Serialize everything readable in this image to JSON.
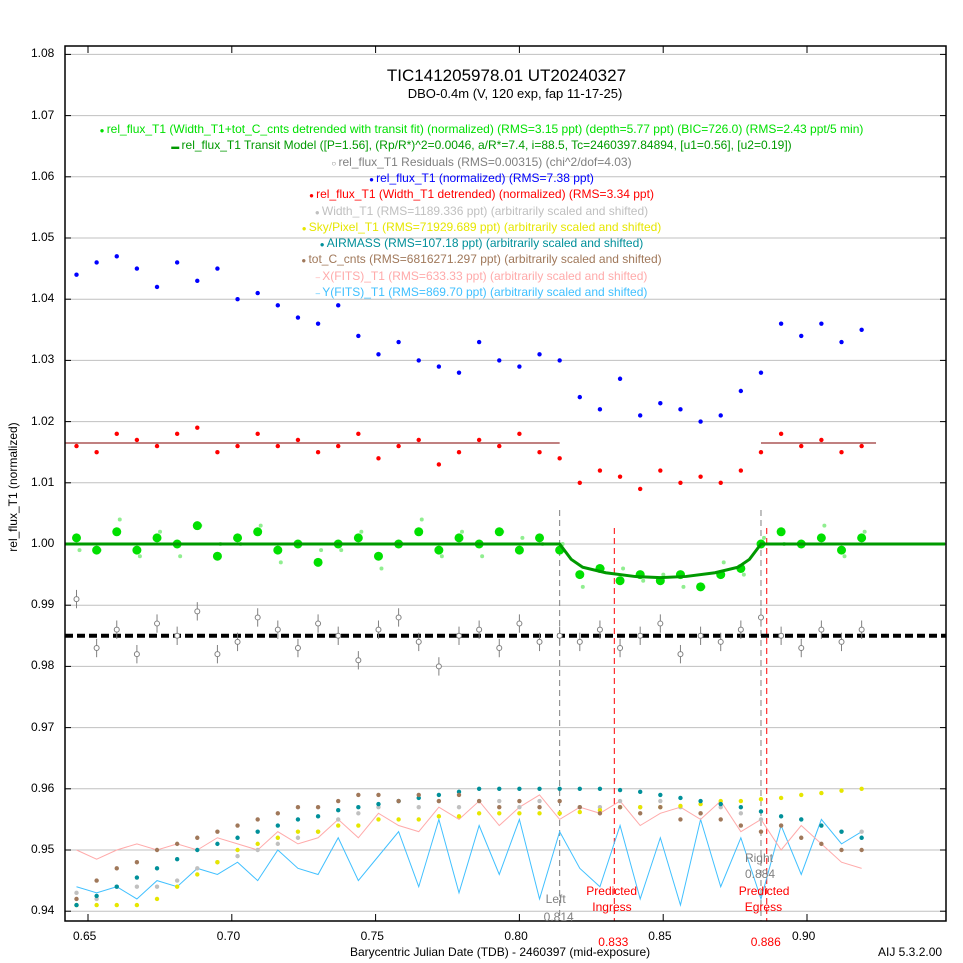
{
  "chart_data": {
    "type": "scatter",
    "title": "TIC141205978.01 UT20240327",
    "subtitle": "DBO-0.4m (V, 120 exp, fap 11-17-25)",
    "xlabel": "Barycentric Julian Date (TDB) - 2460397 (mid-exposure)",
    "ylabel": "rel_flux_T1 (normalized)",
    "version_label": "AIJ 5.3.2.00",
    "xlim": [
      0.642,
      0.948
    ],
    "ylim": [
      0.9385,
      1.0835
    ],
    "xticks": [
      "0.65",
      "0.70",
      "0.75",
      "0.80",
      "0.85",
      "0.90"
    ],
    "xtick_values": [
      0.65,
      0.7,
      0.75,
      0.8,
      0.85,
      0.9
    ],
    "yticks": [
      "0.94",
      "0.95",
      "0.96",
      "0.97",
      "0.98",
      "0.99",
      "1.00",
      "1.01",
      "1.02",
      "1.03",
      "1.04",
      "1.05",
      "1.06",
      "1.07",
      "1.08"
    ],
    "ytick_values": [
      0.94,
      0.95,
      0.96,
      0.97,
      0.98,
      0.99,
      1.0,
      1.01,
      1.02,
      1.03,
      1.04,
      1.05,
      1.06,
      1.07,
      1.08
    ],
    "grid": true,
    "x": [
      0.646,
      0.653,
      0.66,
      0.667,
      0.674,
      0.681,
      0.688,
      0.695,
      0.702,
      0.709,
      0.716,
      0.723,
      0.73,
      0.737,
      0.744,
      0.751,
      0.758,
      0.765,
      0.772,
      0.779,
      0.786,
      0.793,
      0.8,
      0.807,
      0.814,
      0.821,
      0.828,
      0.835,
      0.842,
      0.849,
      0.856,
      0.863,
      0.87,
      0.877,
      0.884,
      0.891,
      0.898,
      0.905,
      0.912,
      0.919
    ],
    "series": [
      {
        "name": "rel_flux_T1 (Width_T1+tot_C_cnts detrended with transit fit) (normalized) (RMS=3.15 ppt) (depth=5.77 ppt) (BIC=726.0) (RMS=2.43 ppt/5 min)",
        "color": "#00e000",
        "style": "bigdot",
        "values": [
          1.001,
          0.999,
          1.002,
          0.999,
          1.001,
          1.0,
          1.003,
          0.998,
          1.001,
          1.002,
          0.999,
          1.0,
          0.997,
          1.0,
          1.001,
          0.998,
          1.0,
          1.002,
          0.999,
          1.001,
          1.0,
          1.002,
          0.999,
          1.001,
          0.999,
          0.995,
          0.996,
          0.994,
          0.995,
          0.994,
          0.995,
          0.993,
          0.995,
          0.996,
          1.0,
          1.002,
          1.0,
          1.001,
          0.999,
          1.001
        ]
      },
      {
        "name": "rel_flux_T1 Transit Model ([P=1.56], (Rp/R*)^2=0.0046, a/R*=7.4, i=88.5, Tc=2460397.84894, [u1=0.56], [u2=0.19])",
        "color": "#009900",
        "style": "model",
        "model_x": [
          0.642,
          0.814,
          0.818,
          0.822,
          0.83,
          0.84,
          0.849,
          0.858,
          0.868,
          0.876,
          0.88,
          0.884,
          0.948
        ],
        "model_y": [
          1.0,
          1.0,
          0.9975,
          0.9962,
          0.9953,
          0.9947,
          0.9945,
          0.9947,
          0.9953,
          0.9962,
          0.9975,
          1.0,
          1.0
        ]
      },
      {
        "name": "rel_flux_T1 Residuals (RMS=0.00315) (chi^2/dof=4.03)",
        "color": "#808080",
        "style": "residual",
        "offset": 0.985,
        "error": 0.0015,
        "values": [
          0.991,
          0.983,
          0.986,
          0.982,
          0.987,
          0.985,
          0.989,
          0.982,
          0.984,
          0.988,
          0.986,
          0.983,
          0.987,
          0.985,
          0.981,
          0.986,
          0.988,
          0.984,
          0.98,
          0.985,
          0.986,
          0.983,
          0.987,
          0.984,
          0.985,
          0.984,
          0.986,
          0.983,
          0.985,
          0.987,
          0.982,
          0.985,
          0.984,
          0.986,
          0.988,
          0.985,
          0.983,
          0.986,
          0.984,
          0.986
        ]
      },
      {
        "name": "rel_flux_T1 (normalized) (RMS=7.38 ppt)",
        "color": "#0000ff",
        "style": "dot",
        "values": [
          1.044,
          1.046,
          1.047,
          1.045,
          1.042,
          1.046,
          1.043,
          1.045,
          1.04,
          1.041,
          1.039,
          1.037,
          1.036,
          1.039,
          1.034,
          1.031,
          1.033,
          1.03,
          1.029,
          1.028,
          1.033,
          1.03,
          1.029,
          1.031,
          1.03,
          1.024,
          1.022,
          1.027,
          1.021,
          1.023,
          1.022,
          1.02,
          1.021,
          1.025,
          1.028,
          1.036,
          1.034,
          1.036,
          1.033,
          1.035
        ]
      },
      {
        "name": "rel_flux_T1 (Width_T1 detrended) (normalized) (RMS=3.34 ppt)",
        "color": "#ff0000",
        "style": "dot",
        "baseline": 1.0165,
        "values": [
          1.016,
          1.015,
          1.018,
          1.017,
          1.016,
          1.018,
          1.019,
          1.015,
          1.016,
          1.018,
          1.016,
          1.017,
          1.015,
          1.016,
          1.018,
          1.014,
          1.016,
          1.017,
          1.013,
          1.015,
          1.017,
          1.016,
          1.018,
          1.015,
          1.014,
          1.01,
          1.012,
          1.011,
          1.009,
          1.012,
          1.01,
          1.011,
          1.01,
          1.012,
          1.015,
          1.018,
          1.016,
          1.017,
          1.015,
          1.016
        ]
      },
      {
        "name": "Width_T1 (RMS=1189.336 ppt) (arbitrarily scaled and shifted)",
        "color": "#c0c0c0",
        "style": "dot",
        "values": [
          0.943,
          0.942,
          0.944,
          0.944,
          0.944,
          0.945,
          0.947,
          0.948,
          0.949,
          0.95,
          0.951,
          0.952,
          0.953,
          0.955,
          0.956,
          0.957,
          0.958,
          0.957,
          0.958,
          0.957,
          0.958,
          0.958,
          0.957,
          0.958,
          0.956,
          0.957,
          0.957,
          0.958,
          0.957,
          0.958,
          0.957,
          0.956,
          0.957,
          0.956,
          0.955,
          0.954,
          0.955,
          0.954,
          0.953,
          0.953
        ]
      },
      {
        "name": "Sky/Pixel_T1 (RMS=71929.689 ppt) (arbitrarily scaled and shifted)",
        "color": "#e6e600",
        "style": "dot",
        "values": [
          0.941,
          0.941,
          0.941,
          0.941,
          0.942,
          0.944,
          0.946,
          0.948,
          0.95,
          0.951,
          0.952,
          0.953,
          0.953,
          0.954,
          0.954,
          0.955,
          0.955,
          0.955,
          0.9555,
          0.9555,
          0.956,
          0.956,
          0.956,
          0.956,
          0.956,
          0.9562,
          0.9565,
          0.957,
          0.957,
          0.957,
          0.9572,
          0.9575,
          0.958,
          0.958,
          0.9583,
          0.9585,
          0.959,
          0.9593,
          0.9597,
          0.96
        ]
      },
      {
        "name": "AIRMASS (RMS=107.18 ppt) (arbitrarily scaled and shifted)",
        "color": "#00909a",
        "style": "dot",
        "values": [
          0.941,
          0.9425,
          0.944,
          0.9455,
          0.947,
          0.9485,
          0.95,
          0.951,
          0.952,
          0.953,
          0.954,
          0.955,
          0.9555,
          0.9565,
          0.957,
          0.9575,
          0.958,
          0.9585,
          0.959,
          0.9595,
          0.96,
          0.96,
          0.96,
          0.96,
          0.96,
          0.96,
          0.96,
          0.9598,
          0.9595,
          0.959,
          0.9585,
          0.958,
          0.9575,
          0.957,
          0.9563,
          0.9555,
          0.955,
          0.954,
          0.953,
          0.952
        ]
      },
      {
        "name": "tot_C_cnts (RMS=6816271.297 ppt) (arbitrarily scaled and shifted)",
        "color": "#a0785a",
        "style": "dot",
        "values": [
          0.942,
          0.945,
          0.947,
          0.948,
          0.95,
          0.951,
          0.952,
          0.953,
          0.954,
          0.955,
          0.956,
          0.957,
          0.957,
          0.958,
          0.959,
          0.959,
          0.958,
          0.959,
          0.958,
          0.959,
          0.958,
          0.957,
          0.958,
          0.957,
          0.958,
          0.957,
          0.956,
          0.957,
          0.956,
          0.957,
          0.955,
          0.956,
          0.955,
          0.954,
          0.953,
          0.954,
          0.952,
          0.951,
          0.95,
          0.95
        ]
      },
      {
        "name": "X(FITS)_T1 (RMS=633.33 ppt) (arbitrarily scaled and shifted)",
        "color": "#ffaaaa",
        "style": "line",
        "values": [
          0.95,
          0.9485,
          0.95,
          0.951,
          0.95,
          0.951,
          0.95,
          0.952,
          0.951,
          0.95,
          0.953,
          0.951,
          0.952,
          0.955,
          0.952,
          0.956,
          0.954,
          0.953,
          0.957,
          0.955,
          0.958,
          0.954,
          0.957,
          0.959,
          0.955,
          0.957,
          0.956,
          0.958,
          0.954,
          0.956,
          0.957,
          0.955,
          0.958,
          0.953,
          0.955,
          0.95,
          0.954,
          0.951,
          0.948,
          0.947
        ]
      },
      {
        "name": "Y(FITS)_T1 (RMS=869.70 ppt) (arbitrarily scaled and shifted)",
        "color": "#40c0ff",
        "style": "line",
        "values": [
          0.944,
          0.943,
          0.944,
          0.942,
          0.945,
          0.944,
          0.947,
          0.946,
          0.948,
          0.945,
          0.95,
          0.947,
          0.946,
          0.952,
          0.945,
          0.949,
          0.953,
          0.944,
          0.955,
          0.943,
          0.954,
          0.946,
          0.955,
          0.942,
          0.953,
          0.947,
          0.944,
          0.954,
          0.942,
          0.952,
          0.941,
          0.955,
          0.944,
          0.952,
          0.942,
          0.954,
          0.946,
          0.955,
          0.951,
          0.953
        ]
      }
    ],
    "markers": [
      {
        "label": "Left",
        "value": 0.814,
        "value_label": "0.814",
        "color": "#808080"
      },
      {
        "label": "Right",
        "value": 0.884,
        "value_label": "0.884",
        "color": "#808080"
      },
      {
        "label": "Predicted Ingress",
        "line1": "Predicted",
        "line2": "Ingress",
        "value": 0.833,
        "value_label": "0.833",
        "color": "#ff0000"
      },
      {
        "label": "Predicted Egress",
        "line1": "Predicted",
        "line2": "Egress",
        "value": 0.886,
        "value_label": "0.886",
        "color": "#ff0000"
      }
    ]
  }
}
